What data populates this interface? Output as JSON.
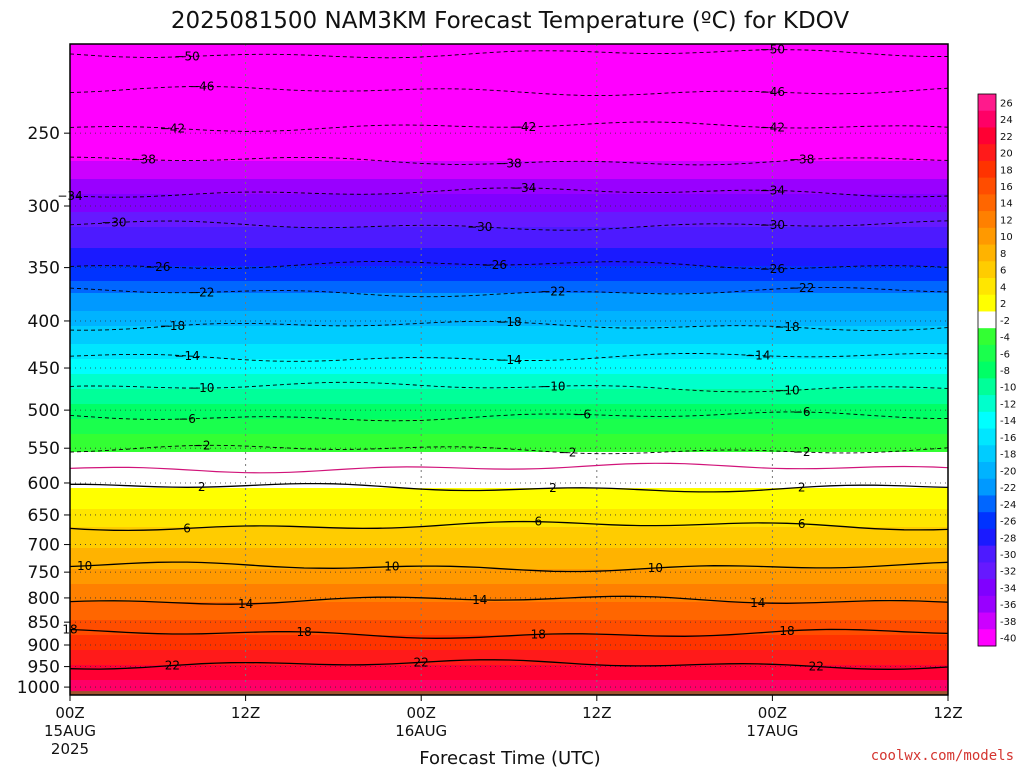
{
  "chart_data": {
    "type": "heatmap",
    "title": "2025081500 NAM3KM Forecast Temperature (ºC) for KDOV",
    "xlabel": "Forecast Time (UTC)",
    "credit": "coolwx.com/models",
    "x_ticks": [
      {
        "label": "00Z",
        "date": "15AUG",
        "year": "2025"
      },
      {
        "label": "12Z",
        "date": "",
        "year": ""
      },
      {
        "label": "00Z",
        "date": "16AUG",
        "year": ""
      },
      {
        "label": "12Z",
        "date": "",
        "year": ""
      },
      {
        "label": "00Z",
        "date": "17AUG",
        "year": ""
      },
      {
        "label": "12Z",
        "date": "",
        "year": ""
      }
    ],
    "x_hours": [
      0,
      12,
      24,
      36,
      48,
      60
    ],
    "y_ticks": [
      250,
      300,
      350,
      400,
      450,
      500,
      550,
      600,
      650,
      700,
      750,
      800,
      850,
      900,
      950,
      1000
    ],
    "y_axis": "pressure (hPa), inverted, log scale",
    "ylim": [
      200,
      1020
    ],
    "colorbar": {
      "labels": [
        "26",
        "24",
        "22",
        "20",
        "18",
        "16",
        "14",
        "12",
        "10",
        "8",
        "6",
        "4",
        "2",
        "-2",
        "-4",
        "-6",
        "-8",
        "-10",
        "-12",
        "-14",
        "-16",
        "-18",
        "-20",
        "-22",
        "-24",
        "-26",
        "-28",
        "-30",
        "-32",
        "-34",
        "-36",
        "-38",
        "-40"
      ],
      "colors": [
        "#ff1a8c",
        "#ff0066",
        "#ff0033",
        "#ff1a1a",
        "#ff3300",
        "#ff4d00",
        "#ff6600",
        "#ff8000",
        "#ff9900",
        "#ffb300",
        "#ffcc00",
        "#ffe600",
        "#ffff00",
        "#ffffff",
        "#33ff33",
        "#1aff4d",
        "#00ff66",
        "#00ff99",
        "#00ffcc",
        "#00ffff",
        "#00e6ff",
        "#00ccff",
        "#00b3ff",
        "#0099ff",
        "#0066ff",
        "#0033ff",
        "#1a1aff",
        "#4d1aff",
        "#6619ff",
        "#8000ff",
        "#9900ff",
        "#cc00ff",
        "#ff00ff"
      ]
    },
    "contours": [
      {
        "value": -50,
        "p": 205,
        "labels_x_hours": [
          8,
          48
        ]
      },
      {
        "value": -46,
        "p": 225,
        "labels_x_hours": [
          9,
          48
        ]
      },
      {
        "value": -42,
        "p": 246,
        "labels_x_hours": [
          7,
          31,
          48
        ]
      },
      {
        "value": -38,
        "p": 268,
        "labels_x_hours": [
          5,
          30,
          50
        ]
      },
      {
        "value": -34,
        "p": 290,
        "labels_x_hours": [
          0,
          31,
          48
        ]
      },
      {
        "value": -30,
        "p": 315,
        "labels_x_hours": [
          3,
          28,
          48
        ]
      },
      {
        "value": -26,
        "p": 348,
        "labels_x_hours": [
          6,
          29,
          48
        ]
      },
      {
        "value": -22,
        "p": 372,
        "labels_x_hours": [
          9,
          33,
          50
        ]
      },
      {
        "value": -18,
        "p": 405,
        "labels_x_hours": [
          7,
          30,
          49
        ]
      },
      {
        "value": -14,
        "p": 438,
        "labels_x_hours": [
          8,
          30,
          47
        ]
      },
      {
        "value": -10,
        "p": 472,
        "labels_x_hours": [
          9,
          33,
          49
        ]
      },
      {
        "value": -6,
        "p": 508,
        "labels_x_hours": [
          8,
          35,
          50
        ]
      },
      {
        "value": -2,
        "p": 552,
        "labels_x_hours": [
          9,
          34,
          50
        ]
      },
      {
        "value": 0,
        "p": 578,
        "labels_x_hours": []
      },
      {
        "value": 2,
        "p": 607,
        "labels_x_hours": [
          9,
          33,
          50
        ]
      },
      {
        "value": 6,
        "p": 668,
        "labels_x_hours": [
          8,
          32,
          50
        ]
      },
      {
        "value": 10,
        "p": 740,
        "labels_x_hours": [
          1,
          22,
          40
        ]
      },
      {
        "value": 14,
        "p": 805,
        "labels_x_hours": [
          12,
          28,
          47
        ]
      },
      {
        "value": 18,
        "p": 875,
        "labels_x_hours": [
          0,
          16,
          32,
          49
        ]
      },
      {
        "value": 22,
        "p": 945,
        "labels_x_hours": [
          7,
          24,
          51
        ]
      }
    ]
  }
}
